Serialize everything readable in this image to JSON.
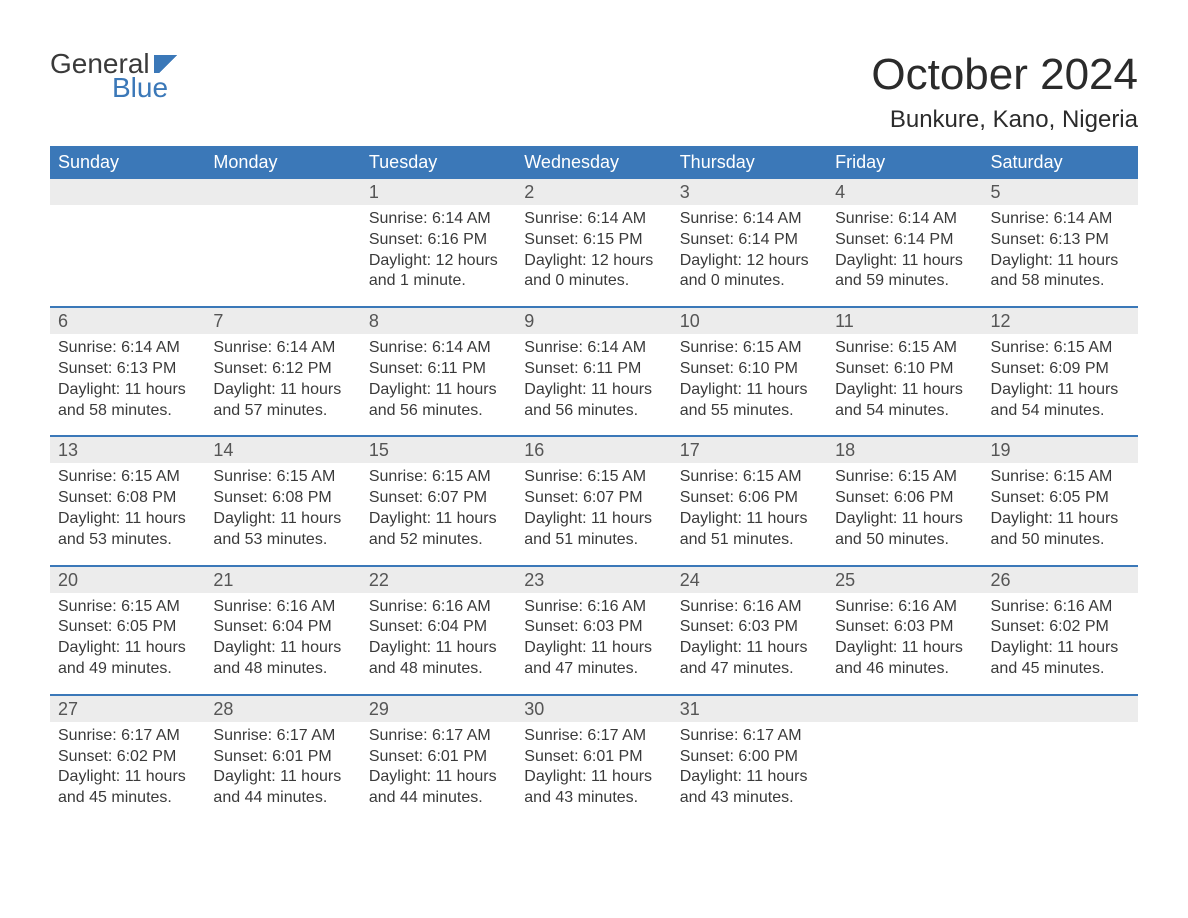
{
  "colors": {
    "brand_blue": "#3b78b8",
    "header_bg": "#3b78b8",
    "header_text": "#ffffff",
    "daynum_bg": "#ececec",
    "daynum_text": "#555555",
    "body_text": "#3a3a3a",
    "page_bg": "#ffffff",
    "week_divider": "#3b78b8"
  },
  "typography": {
    "title_fontsize": 44,
    "location_fontsize": 24,
    "weekday_fontsize": 18,
    "daynum_fontsize": 18,
    "body_fontsize": 16,
    "logo_fontsize": 28
  },
  "logo": {
    "text_general": "General",
    "text_blue": "Blue"
  },
  "title": "October 2024",
  "location": "Bunkure, Kano, Nigeria",
  "weekdays": [
    "Sunday",
    "Monday",
    "Tuesday",
    "Wednesday",
    "Thursday",
    "Friday",
    "Saturday"
  ],
  "labels": {
    "sunrise": "Sunrise:",
    "sunset": "Sunset:",
    "daylight": "Daylight:"
  },
  "weeks": [
    [
      {
        "day": "",
        "sunrise": "",
        "sunset": "",
        "daylight1": "",
        "daylight2": ""
      },
      {
        "day": "",
        "sunrise": "",
        "sunset": "",
        "daylight1": "",
        "daylight2": ""
      },
      {
        "day": "1",
        "sunrise": "6:14 AM",
        "sunset": "6:16 PM",
        "daylight1": "12 hours",
        "daylight2": "and 1 minute."
      },
      {
        "day": "2",
        "sunrise": "6:14 AM",
        "sunset": "6:15 PM",
        "daylight1": "12 hours",
        "daylight2": "and 0 minutes."
      },
      {
        "day": "3",
        "sunrise": "6:14 AM",
        "sunset": "6:14 PM",
        "daylight1": "12 hours",
        "daylight2": "and 0 minutes."
      },
      {
        "day": "4",
        "sunrise": "6:14 AM",
        "sunset": "6:14 PM",
        "daylight1": "11 hours",
        "daylight2": "and 59 minutes."
      },
      {
        "day": "5",
        "sunrise": "6:14 AM",
        "sunset": "6:13 PM",
        "daylight1": "11 hours",
        "daylight2": "and 58 minutes."
      }
    ],
    [
      {
        "day": "6",
        "sunrise": "6:14 AM",
        "sunset": "6:13 PM",
        "daylight1": "11 hours",
        "daylight2": "and 58 minutes."
      },
      {
        "day": "7",
        "sunrise": "6:14 AM",
        "sunset": "6:12 PM",
        "daylight1": "11 hours",
        "daylight2": "and 57 minutes."
      },
      {
        "day": "8",
        "sunrise": "6:14 AM",
        "sunset": "6:11 PM",
        "daylight1": "11 hours",
        "daylight2": "and 56 minutes."
      },
      {
        "day": "9",
        "sunrise": "6:14 AM",
        "sunset": "6:11 PM",
        "daylight1": "11 hours",
        "daylight2": "and 56 minutes."
      },
      {
        "day": "10",
        "sunrise": "6:15 AM",
        "sunset": "6:10 PM",
        "daylight1": "11 hours",
        "daylight2": "and 55 minutes."
      },
      {
        "day": "11",
        "sunrise": "6:15 AM",
        "sunset": "6:10 PM",
        "daylight1": "11 hours",
        "daylight2": "and 54 minutes."
      },
      {
        "day": "12",
        "sunrise": "6:15 AM",
        "sunset": "6:09 PM",
        "daylight1": "11 hours",
        "daylight2": "and 54 minutes."
      }
    ],
    [
      {
        "day": "13",
        "sunrise": "6:15 AM",
        "sunset": "6:08 PM",
        "daylight1": "11 hours",
        "daylight2": "and 53 minutes."
      },
      {
        "day": "14",
        "sunrise": "6:15 AM",
        "sunset": "6:08 PM",
        "daylight1": "11 hours",
        "daylight2": "and 53 minutes."
      },
      {
        "day": "15",
        "sunrise": "6:15 AM",
        "sunset": "6:07 PM",
        "daylight1": "11 hours",
        "daylight2": "and 52 minutes."
      },
      {
        "day": "16",
        "sunrise": "6:15 AM",
        "sunset": "6:07 PM",
        "daylight1": "11 hours",
        "daylight2": "and 51 minutes."
      },
      {
        "day": "17",
        "sunrise": "6:15 AM",
        "sunset": "6:06 PM",
        "daylight1": "11 hours",
        "daylight2": "and 51 minutes."
      },
      {
        "day": "18",
        "sunrise": "6:15 AM",
        "sunset": "6:06 PM",
        "daylight1": "11 hours",
        "daylight2": "and 50 minutes."
      },
      {
        "day": "19",
        "sunrise": "6:15 AM",
        "sunset": "6:05 PM",
        "daylight1": "11 hours",
        "daylight2": "and 50 minutes."
      }
    ],
    [
      {
        "day": "20",
        "sunrise": "6:15 AM",
        "sunset": "6:05 PM",
        "daylight1": "11 hours",
        "daylight2": "and 49 minutes."
      },
      {
        "day": "21",
        "sunrise": "6:16 AM",
        "sunset": "6:04 PM",
        "daylight1": "11 hours",
        "daylight2": "and 48 minutes."
      },
      {
        "day": "22",
        "sunrise": "6:16 AM",
        "sunset": "6:04 PM",
        "daylight1": "11 hours",
        "daylight2": "and 48 minutes."
      },
      {
        "day": "23",
        "sunrise": "6:16 AM",
        "sunset": "6:03 PM",
        "daylight1": "11 hours",
        "daylight2": "and 47 minutes."
      },
      {
        "day": "24",
        "sunrise": "6:16 AM",
        "sunset": "6:03 PM",
        "daylight1": "11 hours",
        "daylight2": "and 47 minutes."
      },
      {
        "day": "25",
        "sunrise": "6:16 AM",
        "sunset": "6:03 PM",
        "daylight1": "11 hours",
        "daylight2": "and 46 minutes."
      },
      {
        "day": "26",
        "sunrise": "6:16 AM",
        "sunset": "6:02 PM",
        "daylight1": "11 hours",
        "daylight2": "and 45 minutes."
      }
    ],
    [
      {
        "day": "27",
        "sunrise": "6:17 AM",
        "sunset": "6:02 PM",
        "daylight1": "11 hours",
        "daylight2": "and 45 minutes."
      },
      {
        "day": "28",
        "sunrise": "6:17 AM",
        "sunset": "6:01 PM",
        "daylight1": "11 hours",
        "daylight2": "and 44 minutes."
      },
      {
        "day": "29",
        "sunrise": "6:17 AM",
        "sunset": "6:01 PM",
        "daylight1": "11 hours",
        "daylight2": "and 44 minutes."
      },
      {
        "day": "30",
        "sunrise": "6:17 AM",
        "sunset": "6:01 PM",
        "daylight1": "11 hours",
        "daylight2": "and 43 minutes."
      },
      {
        "day": "31",
        "sunrise": "6:17 AM",
        "sunset": "6:00 PM",
        "daylight1": "11 hours",
        "daylight2": "and 43 minutes."
      },
      {
        "day": "",
        "sunrise": "",
        "sunset": "",
        "daylight1": "",
        "daylight2": ""
      },
      {
        "day": "",
        "sunrise": "",
        "sunset": "",
        "daylight1": "",
        "daylight2": ""
      }
    ]
  ]
}
